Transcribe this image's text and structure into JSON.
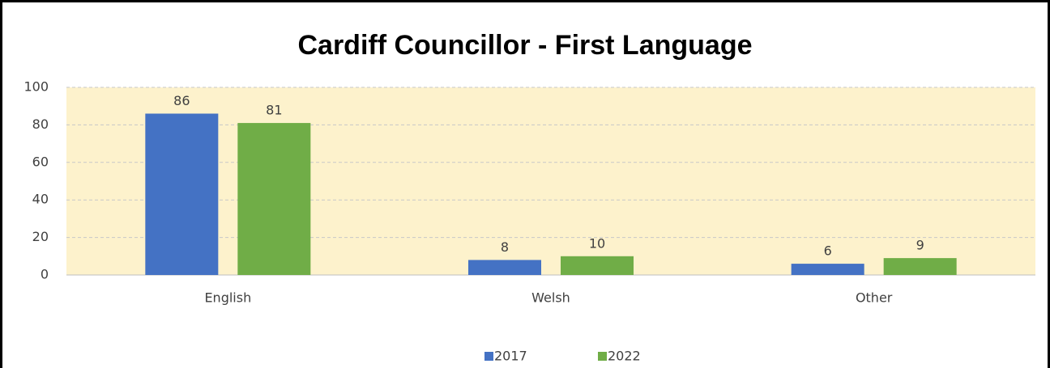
{
  "chart_data": {
    "type": "bar",
    "title": "Cardiff Councillor - First Language",
    "categories": [
      "English",
      "Welsh",
      "Other"
    ],
    "series": [
      {
        "name": "2017",
        "color": "#4472c4",
        "values": [
          86,
          8,
          6
        ]
      },
      {
        "name": "2022",
        "color": "#70ad47",
        "values": [
          81,
          10,
          9
        ]
      }
    ],
    "ylim": [
      0,
      100
    ],
    "yticks": [
      0,
      20,
      40,
      60,
      80,
      100
    ],
    "grid": true,
    "legend": "bottom"
  }
}
